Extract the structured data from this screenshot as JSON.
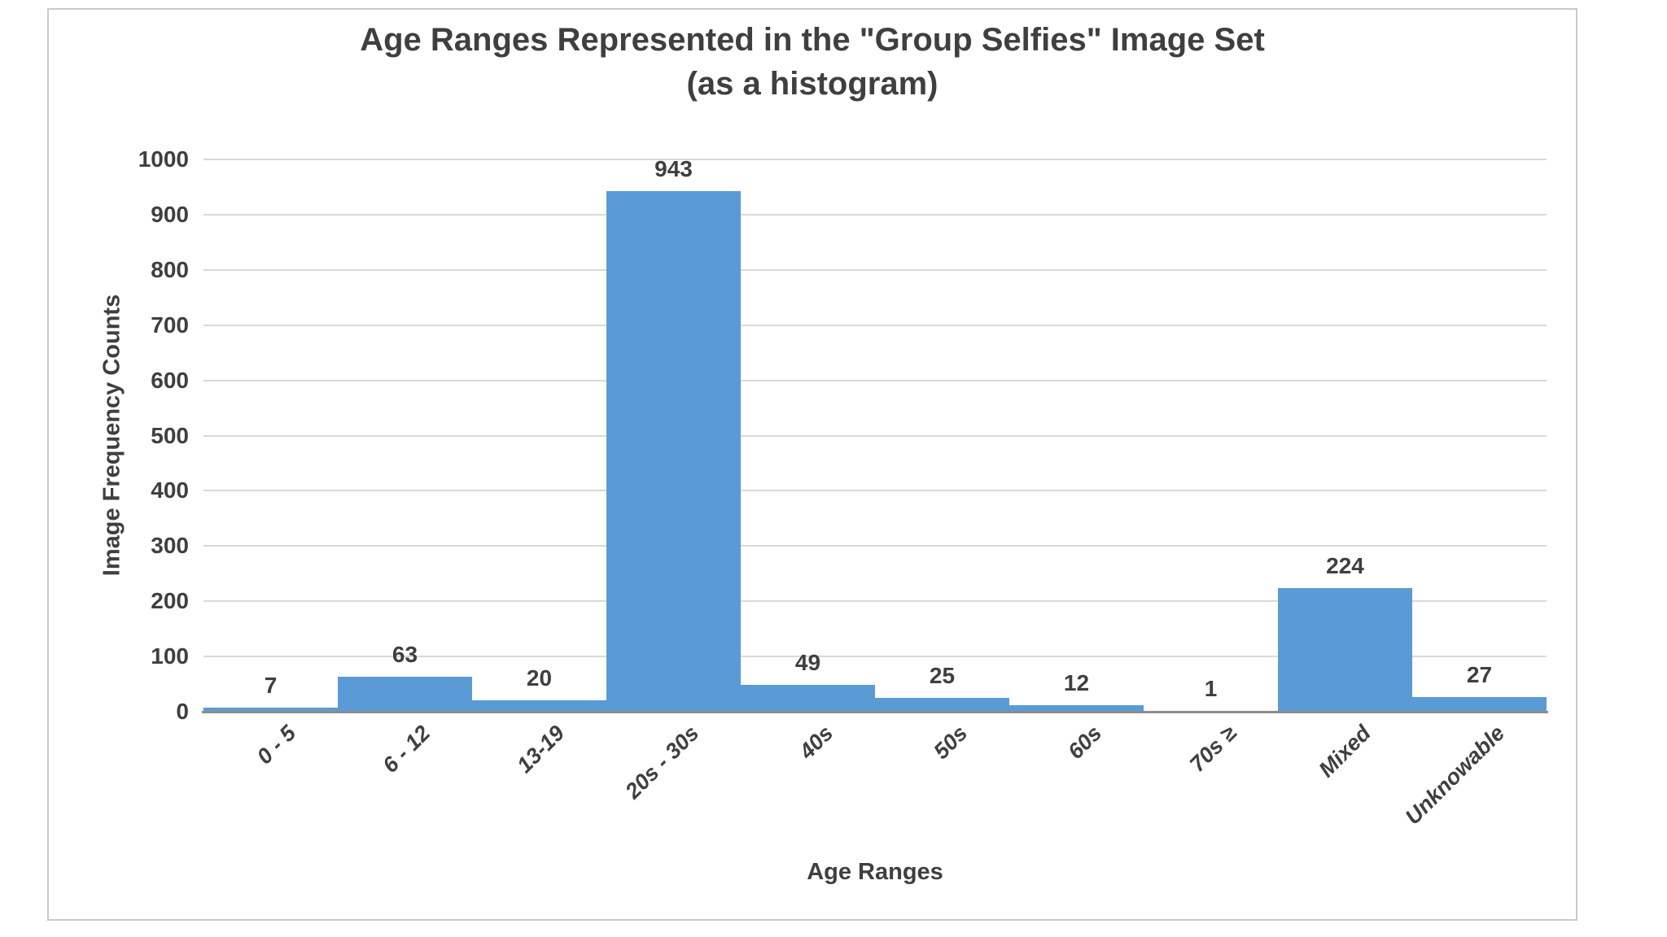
{
  "page": {
    "background": "#ffffff"
  },
  "frame": {
    "border_color": "#c9c9c9",
    "background": "#ffffff"
  },
  "chart_data": {
    "type": "bar",
    "title": "Age Ranges Represented in the \"Group Selfies\" Image Set",
    "subtitle": "(as a histogram)",
    "xlabel": "Age Ranges",
    "ylabel": "Image Frequency Counts",
    "categories": [
      "0 - 5",
      "6 - 12",
      "13-19",
      "20s - 30s",
      "40s",
      "50s",
      "60s",
      "70s ≥",
      "Mixed",
      "Unknowable"
    ],
    "values": [
      7,
      63,
      20,
      943,
      49,
      25,
      12,
      1,
      224,
      27
    ],
    "ylim": [
      0,
      1000
    ],
    "ytick_step": 100,
    "grid": true,
    "legend": false,
    "value_labels": true,
    "bar_gap": 0,
    "x_tick_rotation_deg": -45,
    "colors": {
      "bar": "#5B9BD5",
      "gridline": "#D9D9D9",
      "axis_line": "#8C8C8C",
      "text": "#3F3F3F"
    }
  }
}
